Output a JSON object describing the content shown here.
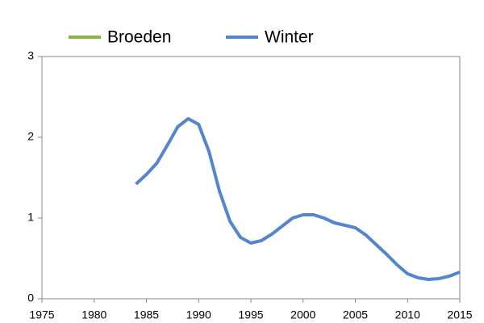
{
  "chart_data": {
    "type": "line",
    "x": [
      1984,
      1985,
      1986,
      1987,
      1988,
      1989,
      1990,
      1991,
      1992,
      1993,
      1994,
      1995,
      1996,
      1997,
      1998,
      1999,
      2000,
      2001,
      2002,
      2003,
      2004,
      2005,
      2006,
      2007,
      2008,
      2009,
      2010,
      2011,
      2012,
      2013,
      2014,
      2015
    ],
    "series": [
      {
        "name": "Broeden",
        "color": "#8db24a",
        "values": [
          null,
          null,
          null,
          null,
          null,
          null,
          null,
          null,
          null,
          null,
          null,
          null,
          null,
          null,
          null,
          null,
          null,
          null,
          null,
          null,
          null,
          null,
          null,
          null,
          null,
          null,
          null,
          null,
          null,
          null,
          null,
          null
        ]
      },
      {
        "name": "Winter",
        "color": "#5585cc",
        "values": [
          1.42,
          1.54,
          1.68,
          1.9,
          2.13,
          2.23,
          2.16,
          1.82,
          1.33,
          0.96,
          0.76,
          0.69,
          0.72,
          0.8,
          0.9,
          1.0,
          1.04,
          1.04,
          1.0,
          0.94,
          0.91,
          0.88,
          0.79,
          0.67,
          0.55,
          0.42,
          0.31,
          0.26,
          0.24,
          0.25,
          0.28,
          0.33
        ]
      }
    ],
    "xlim": [
      1975,
      2015
    ],
    "xticks": [
      1975,
      1980,
      1985,
      1990,
      1995,
      2000,
      2005,
      2010,
      2015
    ],
    "ylim": [
      0,
      3
    ],
    "yticks": [
      0,
      1,
      2,
      3
    ],
    "legend": "top"
  }
}
